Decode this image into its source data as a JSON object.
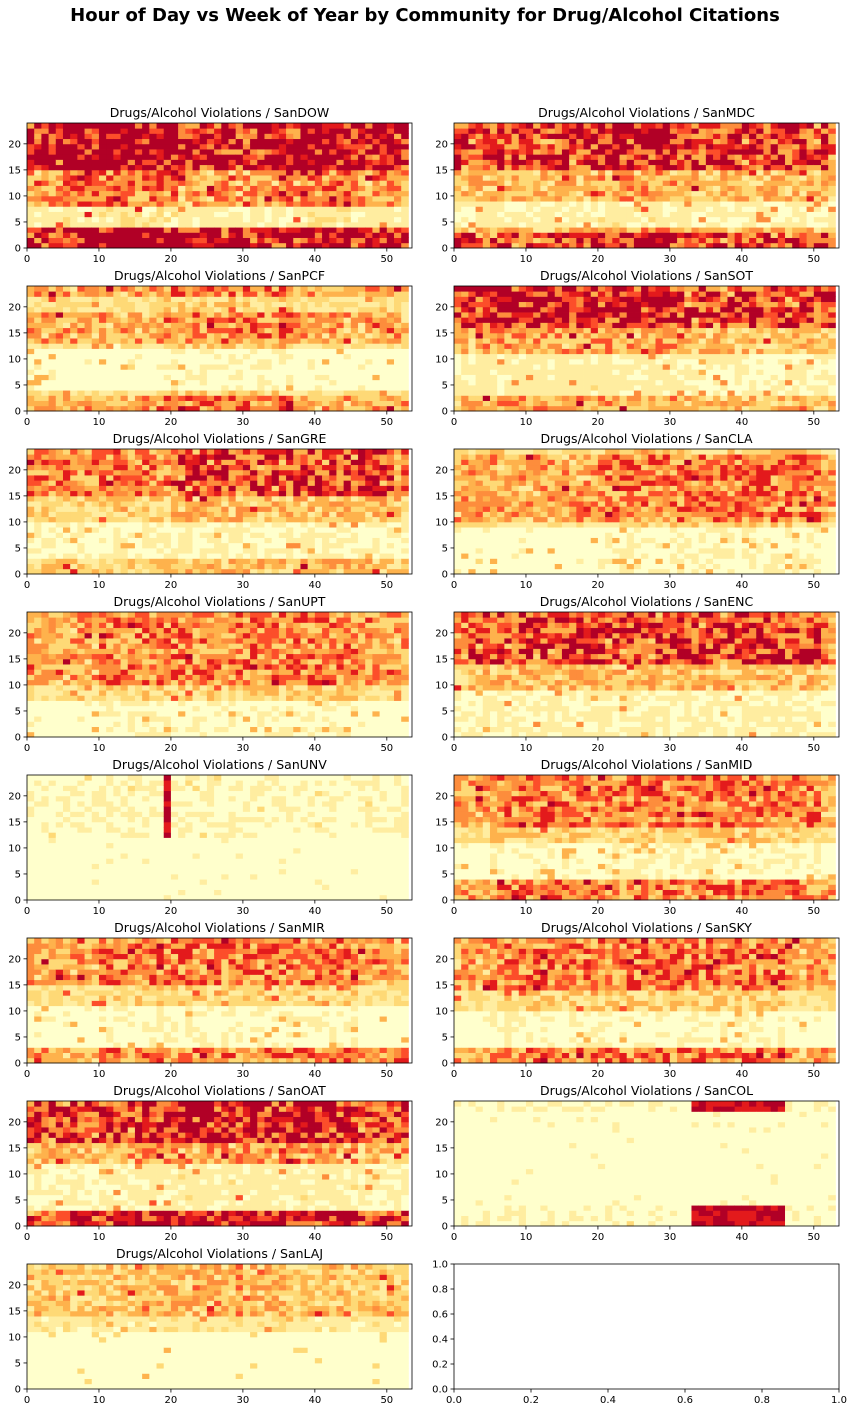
{
  "figure": {
    "suptitle": "Hour of Day vs Week of Year by Community for Drug/Alcohol Citations"
  },
  "colormap": [
    "#ffffcc",
    "#ffeda0",
    "#fed976",
    "#feb24c",
    "#fd8d3c",
    "#fc4e2a",
    "#e31a1c",
    "#b10026"
  ],
  "chart_data": [
    {
      "type": "heatmap",
      "title": "Drugs/Alcohol Violations / SanDOW",
      "xlim": [
        0,
        53.5
      ],
      "ylim": [
        0,
        24
      ],
      "xticks": [
        0,
        10,
        20,
        30,
        40,
        50
      ],
      "yticks": [
        0,
        5,
        10,
        15,
        20
      ],
      "x": "week 1-53",
      "y": "hour 0-23",
      "intensity": {
        "level": "very high",
        "hot_hours": [
          [
            0,
            3
          ],
          [
            15,
            24
          ]
        ],
        "quiet_hours": [
          4,
          7
        ],
        "hot_weeks": [
          [
            5,
            20
          ],
          [
            38,
            44
          ]
        ]
      }
    },
    {
      "type": "heatmap",
      "title": "Drugs/Alcohol Violations / SanMDC",
      "xlim": [
        0,
        53.5
      ],
      "ylim": [
        0,
        24
      ],
      "xticks": [
        0,
        10,
        20,
        30,
        40,
        50
      ],
      "yticks": [
        0,
        5,
        10,
        15,
        20
      ],
      "x": "week 1-53",
      "y": "hour 0-23",
      "intensity": {
        "level": "high",
        "hot_hours": [
          [
            0,
            2
          ],
          [
            15,
            24
          ]
        ],
        "quiet_hours": [
          4,
          8
        ],
        "hot_weeks": [
          [
            20,
            30
          ]
        ]
      }
    },
    {
      "type": "heatmap",
      "title": "Drugs/Alcohol Violations / SanPCF",
      "xlim": [
        0,
        53.5
      ],
      "ylim": [
        0,
        24
      ],
      "xticks": [
        0,
        10,
        20,
        30,
        40,
        50
      ],
      "yticks": [
        0,
        5,
        10,
        15,
        20
      ],
      "x": "week 1-53",
      "y": "hour 0-23",
      "intensity": {
        "level": "medium",
        "hot_hours": [
          [
            0,
            2
          ],
          [
            13,
            18
          ],
          [
            22,
            24
          ]
        ],
        "quiet_hours": [
          4,
          11
        ],
        "hot_weeks": [
          [
            19,
            36
          ]
        ]
      }
    },
    {
      "type": "heatmap",
      "title": "Drugs/Alcohol Violations / SanSOT",
      "xlim": [
        0,
        53.5
      ],
      "ylim": [
        0,
        24
      ],
      "xticks": [
        0,
        10,
        20,
        30,
        40,
        50
      ],
      "yticks": [
        0,
        5,
        10,
        15,
        20
      ],
      "x": "week 1-53",
      "y": "hour 0-23",
      "intensity": {
        "level": "high",
        "hot_hours": [
          [
            16,
            24
          ]
        ],
        "quiet_hours": [
          3,
          10
        ],
        "hot_weeks": [
          [
            3,
            30
          ]
        ]
      }
    },
    {
      "type": "heatmap",
      "title": "Drugs/Alcohol Violations / SanGRE",
      "xlim": [
        0,
        53.5
      ],
      "ylim": [
        0,
        24
      ],
      "xticks": [
        0,
        10,
        20,
        30,
        40,
        50
      ],
      "yticks": [
        0,
        5,
        10,
        15,
        20
      ],
      "x": "week 1-53",
      "y": "hour 0-23",
      "intensity": {
        "level": "medium-high",
        "hot_hours": [
          [
            15,
            24
          ]
        ],
        "quiet_hours": [
          3,
          9
        ],
        "hot_weeks": [
          [
            20,
            50
          ]
        ]
      }
    },
    {
      "type": "heatmap",
      "title": "Drugs/Alcohol Violations / SanCLA",
      "xlim": [
        0,
        53.5
      ],
      "ylim": [
        0,
        24
      ],
      "xticks": [
        0,
        10,
        20,
        30,
        40,
        50
      ],
      "yticks": [
        0,
        5,
        10,
        15,
        20
      ],
      "x": "week 1-53",
      "y": "hour 0-23",
      "intensity": {
        "level": "medium",
        "hot_hours": [
          [
            10,
            22
          ]
        ],
        "quiet_hours": [
          0,
          8
        ],
        "hot_weeks": [
          [
            20,
            50
          ]
        ]
      }
    },
    {
      "type": "heatmap",
      "title": "Drugs/Alcohol Violations / SanUPT",
      "xlim": [
        0,
        53.5
      ],
      "ylim": [
        0,
        24
      ],
      "xticks": [
        0,
        10,
        20,
        30,
        40,
        50
      ],
      "yticks": [
        0,
        5,
        10,
        15,
        20
      ],
      "x": "week 1-53",
      "y": "hour 0-23",
      "intensity": {
        "level": "medium",
        "hot_hours": [
          [
            10,
            24
          ]
        ],
        "quiet_hours": [
          0,
          6
        ],
        "hot_weeks": [
          [
            10,
            45
          ]
        ]
      }
    },
    {
      "type": "heatmap",
      "title": "Drugs/Alcohol Violations / SanENC",
      "xlim": [
        0,
        53.5
      ],
      "ylim": [
        0,
        24
      ],
      "xticks": [
        0,
        10,
        20,
        30,
        40,
        50
      ],
      "yticks": [
        0,
        5,
        10,
        15,
        20
      ],
      "x": "week 1-53",
      "y": "hour 0-23",
      "intensity": {
        "level": "medium-high",
        "hot_hours": [
          [
            14,
            24
          ]
        ],
        "quiet_hours": [
          0,
          8
        ],
        "hot_weeks": [
          [
            2,
            50
          ]
        ]
      }
    },
    {
      "type": "heatmap",
      "title": "Drugs/Alcohol Violations / SanUNV",
      "xlim": [
        0,
        53.5
      ],
      "ylim": [
        0,
        24
      ],
      "xticks": [
        0,
        10,
        20,
        30,
        40,
        50
      ],
      "yticks": [
        0,
        5,
        10,
        15,
        20
      ],
      "x": "week 1-53",
      "y": "hour 0-23",
      "intensity": {
        "level": "low",
        "hot_hours": [
          [
            12,
            23
          ]
        ],
        "quiet_hours": [
          0,
          11
        ],
        "hot_weeks": [
          [
            19,
            19
          ]
        ]
      }
    },
    {
      "type": "heatmap",
      "title": "Drugs/Alcohol Violations / SanMID",
      "xlim": [
        0,
        53.5
      ],
      "ylim": [
        0,
        24
      ],
      "xticks": [
        0,
        10,
        20,
        30,
        40,
        50
      ],
      "yticks": [
        0,
        5,
        10,
        15,
        20
      ],
      "x": "week 1-53",
      "y": "hour 0-23",
      "intensity": {
        "level": "medium",
        "hot_hours": [
          [
            0,
            3
          ],
          [
            14,
            24
          ]
        ],
        "quiet_hours": [
          4,
          10
        ],
        "hot_weeks": [
          [
            5,
            50
          ]
        ]
      }
    },
    {
      "type": "heatmap",
      "title": "Drugs/Alcohol Violations / SanMIR",
      "xlim": [
        0,
        53.5
      ],
      "ylim": [
        0,
        24
      ],
      "xticks": [
        0,
        10,
        20,
        30,
        40,
        50
      ],
      "yticks": [
        0,
        5,
        10,
        15,
        20
      ],
      "x": "week 1-53",
      "y": "hour 0-23",
      "intensity": {
        "level": "medium",
        "hot_hours": [
          [
            0,
            2
          ],
          [
            15,
            24
          ]
        ],
        "quiet_hours": [
          3,
          10
        ],
        "hot_weeks": [
          [
            10,
            45
          ]
        ]
      }
    },
    {
      "type": "heatmap",
      "title": "Drugs/Alcohol Violations / SanSKY",
      "xlim": [
        0,
        53.5
      ],
      "ylim": [
        0,
        24
      ],
      "xticks": [
        0,
        10,
        20,
        30,
        40,
        50
      ],
      "yticks": [
        0,
        5,
        10,
        15,
        20
      ],
      "x": "week 1-53",
      "y": "hour 0-23",
      "intensity": {
        "level": "medium",
        "hot_hours": [
          [
            0,
            2
          ],
          [
            14,
            24
          ]
        ],
        "quiet_hours": [
          3,
          9
        ],
        "hot_weeks": [
          [
            5,
            45
          ]
        ]
      }
    },
    {
      "type": "heatmap",
      "title": "Drugs/Alcohol Violations / SanOAT",
      "xlim": [
        0,
        53.5
      ],
      "ylim": [
        0,
        24
      ],
      "xticks": [
        0,
        10,
        20,
        30,
        40,
        50
      ],
      "yticks": [
        0,
        5,
        10,
        15,
        20
      ],
      "x": "week 1-53",
      "y": "hour 0-23",
      "intensity": {
        "level": "high",
        "hot_hours": [
          [
            0,
            2
          ],
          [
            16,
            24
          ]
        ],
        "quiet_hours": [
          3,
          11
        ],
        "hot_weeks": [
          [
            15,
            45
          ]
        ]
      }
    },
    {
      "type": "heatmap",
      "title": "Drugs/Alcohol Violations / SanCOL",
      "xlim": [
        0,
        53.5
      ],
      "ylim": [
        0,
        24
      ],
      "xticks": [
        0,
        10,
        20,
        30,
        40,
        50
      ],
      "yticks": [
        0,
        5,
        10,
        15,
        20
      ],
      "x": "week 1-53",
      "y": "hour 0-23",
      "intensity": {
        "level": "low",
        "hot_hours": [
          [
            0,
            3
          ],
          [
            22,
            24
          ]
        ],
        "quiet_hours": [
          4,
          21
        ],
        "hot_weeks": [
          [
            33,
            45
          ]
        ]
      }
    },
    {
      "type": "heatmap",
      "title": "Drugs/Alcohol Violations / SanLAJ",
      "xlim": [
        0,
        53.5
      ],
      "ylim": [
        0,
        24
      ],
      "xticks": [
        0,
        10,
        20,
        30,
        40,
        50
      ],
      "yticks": [
        0,
        5,
        10,
        15,
        20
      ],
      "x": "week 1-53",
      "y": "hour 0-23",
      "intensity": {
        "level": "low-medium",
        "hot_hours": [
          [
            14,
            23
          ]
        ],
        "quiet_hours": [
          0,
          10
        ],
        "hot_weeks": [
          [
            15,
            35
          ]
        ]
      }
    },
    {
      "type": "empty",
      "title": "",
      "xlim": [
        0,
        1
      ],
      "ylim": [
        0,
        1
      ],
      "xticks": [
        "0.0",
        "0.2",
        "0.4",
        "0.6",
        "0.8",
        "1.0"
      ],
      "yticks": [
        "0.0",
        "0.2",
        "0.4",
        "0.6",
        "0.8",
        "1.0"
      ]
    }
  ]
}
